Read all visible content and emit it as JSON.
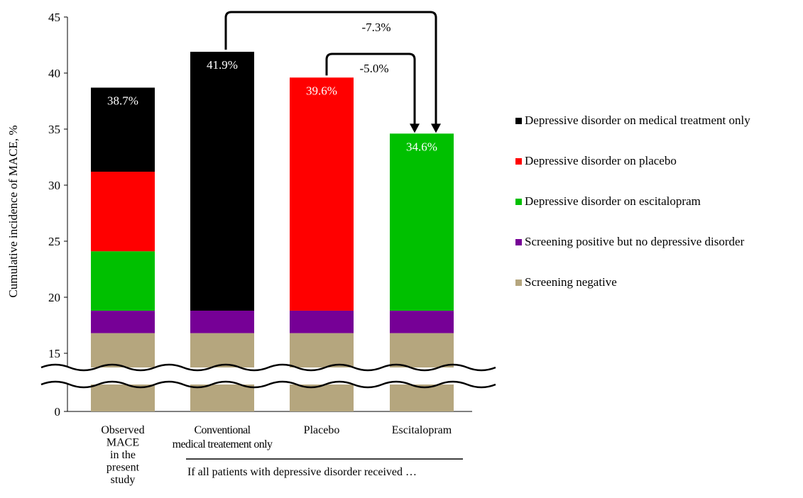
{
  "chart_data": {
    "type": "bar",
    "stacked": true,
    "ylabel": "Cumulative incidence of MACE, %",
    "ylim": [
      0,
      45
    ],
    "y_axis_break": [
      0,
      15
    ],
    "yticks": [
      "0",
      "15",
      "20",
      "25",
      "30",
      "35",
      "40",
      "45"
    ],
    "categories": [
      "Observed MACE in the present study",
      "Conventional medical treatement only",
      "Placebo",
      "Escitalopram"
    ],
    "category_label_lines": [
      [
        "Observed",
        "MACE",
        "in the",
        "present",
        "study"
      ],
      [
        "Conventional",
        "medical treatement only"
      ],
      [
        "Placebo"
      ],
      [
        "Escitalopram"
      ]
    ],
    "series": [
      {
        "name": "Screening negative",
        "color": "#b5a67e",
        "values": [
          16.8,
          16.8,
          16.8,
          16.8
        ]
      },
      {
        "name": "Screening positive but no depressive disorder",
        "color": "#760096",
        "values": [
          2.0,
          2.0,
          2.0,
          2.0
        ]
      },
      {
        "name": "Depressive disorder on escitalopram",
        "color": "#00c000",
        "values": [
          5.3,
          0,
          0,
          15.8
        ]
      },
      {
        "name": "Depressive disorder on placebo",
        "color": "#ff0000",
        "values": [
          7.1,
          0,
          20.8,
          0
        ]
      },
      {
        "name": "Depressive disorder on medical treatment only",
        "color": "#000000",
        "values": [
          7.5,
          23.1,
          0,
          0
        ]
      }
    ],
    "legend_order": [
      "Depressive disorder on medical treatment only",
      "Depressive disorder on placebo",
      "Depressive disorder on escitalopram",
      "Screening positive but no depressive disorder",
      "Screening negative"
    ],
    "legend_position": "right",
    "totals": [
      {
        "category": "Observed MACE in the present study",
        "label": "38.7%",
        "value": 38.7
      },
      {
        "category": "Conventional medical treatement only",
        "label": "41.9%",
        "value": 41.9
      },
      {
        "category": "Placebo",
        "label": "39.6%",
        "value": 39.6
      },
      {
        "category": "Escitalopram",
        "label": "34.6%",
        "value": 34.6
      }
    ],
    "annotations": [
      {
        "from": "Conventional medical treatement only",
        "to": "Escitalopram",
        "label": "-7.3%"
      },
      {
        "from": "Placebo",
        "to": "Escitalopram",
        "label": "-5.0%"
      }
    ],
    "group_label": "If all patients with depressive disorder received …"
  }
}
